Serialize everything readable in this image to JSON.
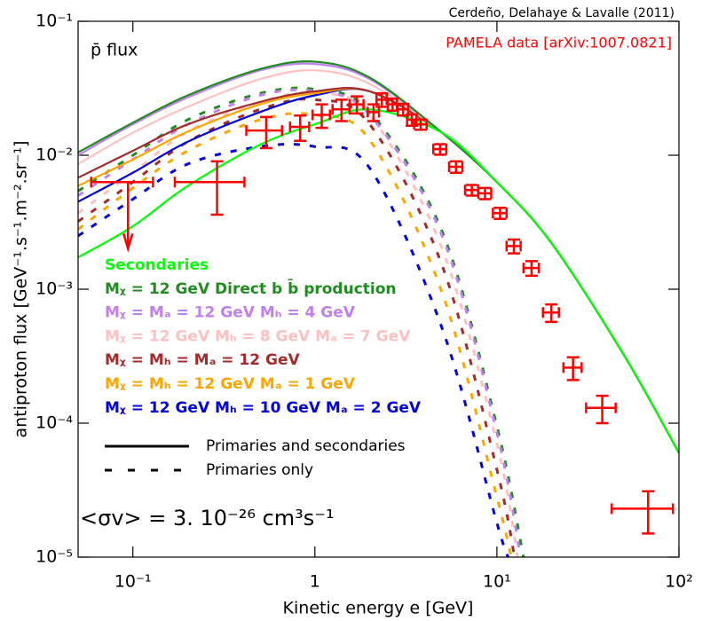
{
  "chart_data": {
    "type": "line",
    "credit": "Cerdeño, Delahaye & Lavalle (2011)",
    "inset_title": "p̄ flux",
    "data_label": "PAMELA data [arXiv:1007.0821]",
    "annotation": "<σv> = 3. 10⁻²⁶ cm³s⁻¹",
    "x_label": "Kinetic energy e [GeV]",
    "y_label": "antiproton flux [GeV⁻¹.s⁻¹.m⁻².sr⁻¹]",
    "xscale": "log",
    "yscale": "log",
    "xlim": [
      0.05,
      100
    ],
    "ylim": [
      1e-05,
      0.1
    ],
    "xticks": [
      {
        "value": 0.1,
        "label": "10⁻¹"
      },
      1,
      {
        "value": 10,
        "label": "10¹"
      },
      {
        "value": 100,
        "label": "10²"
      }
    ],
    "yticks": [
      {
        "value": 1e-05,
        "label": "10⁻⁵"
      },
      {
        "value": 0.0001,
        "label": "10⁻⁴"
      },
      {
        "value": 0.001,
        "label": "10⁻³"
      },
      {
        "value": 0.01,
        "label": "10⁻²"
      },
      {
        "value": 0.1,
        "label": "10⁻¹"
      }
    ],
    "series": [
      {
        "name": "Secondaries",
        "color": "#00ff00",
        "x": [
          0.05,
          0.1,
          0.2,
          0.5,
          1,
          2,
          5,
          10,
          20,
          50,
          100
        ],
        "values": [
          0.00173,
          0.00295,
          0.0059,
          0.012,
          0.017,
          0.022,
          0.0147,
          0.0063,
          0.0022,
          0.00032,
          6e-05
        ]
      },
      {
        "name": "Mᵪ = 12 GeV Direct b b̄ production",
        "color": "#228b22",
        "x": [
          0.05,
          0.1,
          0.2,
          0.5,
          1,
          2,
          5,
          10,
          20,
          50,
          100
        ],
        "values": [
          0.0105,
          0.0175,
          0.028,
          0.044,
          0.05,
          0.038,
          0.0147,
          0.0063,
          0.0022,
          0.00032,
          6e-05
        ],
        "dashed_x": [
          0.05,
          0.1,
          0.2,
          0.5,
          1,
          2,
          5,
          10,
          14
        ],
        "dashed_values": [
          0.0054,
          0.01,
          0.0184,
          0.029,
          0.031,
          0.021,
          0.0027,
          9.5e-05,
          1e-05
        ]
      },
      {
        "name": "Mᵪ = Mₐ = 12 GeV  Mₕ = 4 GeV",
        "color": "#c080f0",
        "x": [
          0.05,
          0.1,
          0.2,
          0.5,
          1,
          2,
          5,
          10,
          20,
          50,
          100
        ],
        "values": [
          0.01,
          0.017,
          0.027,
          0.043,
          0.048,
          0.037,
          0.0147,
          0.0063,
          0.0022,
          0.00032,
          6e-05
        ],
        "dashed_x": [
          0.05,
          0.1,
          0.2,
          0.5,
          1,
          2,
          5,
          10,
          13.5
        ],
        "dashed_values": [
          0.005,
          0.0093,
          0.017,
          0.028,
          0.03,
          0.02,
          0.0025,
          8.5e-05,
          1e-05
        ]
      },
      {
        "name": "Mᵪ = 12 GeV Mₕ = 8 GeV  Mₐ = 7 GeV",
        "color": "#ffc0c0",
        "x": [
          0.05,
          0.1,
          0.2,
          0.5,
          1,
          2,
          5,
          10,
          20,
          50,
          100
        ],
        "values": [
          0.0086,
          0.0147,
          0.023,
          0.037,
          0.043,
          0.034,
          0.0147,
          0.0063,
          0.0022,
          0.00032,
          6e-05
        ],
        "dashed_x": [
          0.05,
          0.1,
          0.2,
          0.5,
          1,
          2,
          5,
          10,
          13
        ],
        "dashed_values": [
          0.0037,
          0.0074,
          0.015,
          0.025,
          0.029,
          0.02,
          0.002,
          7e-05,
          1e-05
        ]
      },
      {
        "name": "Mᵪ = Mₕ = Mₐ = 12 GeV",
        "color": "#a52a2a",
        "x": [
          0.05,
          0.1,
          0.2,
          0.5,
          1,
          2,
          5,
          10,
          20,
          50,
          100
        ],
        "values": [
          0.0068,
          0.0108,
          0.017,
          0.025,
          0.03,
          0.03,
          0.0147,
          0.0063,
          0.0022,
          0.00032,
          6e-05
        ],
        "dashed_x": [
          0.05,
          0.1,
          0.2,
          0.5,
          1,
          2,
          5,
          10,
          12.5
        ],
        "dashed_values": [
          0.0032,
          0.0063,
          0.0126,
          0.022,
          0.026,
          0.017,
          0.0015,
          4.5e-05,
          1e-05
        ]
      },
      {
        "name": "Mᵪ = Mₕ = 12 GeV  Mₐ = 1 GeV",
        "color": "#ffa500",
        "x": [
          0.05,
          0.1,
          0.2,
          0.5,
          1,
          2,
          5,
          10,
          20,
          50,
          100
        ],
        "values": [
          0.0059,
          0.0093,
          0.015,
          0.024,
          0.029,
          0.03,
          0.0147,
          0.0063,
          0.0022,
          0.00032,
          6e-05
        ],
        "dashed_x": [
          0.05,
          0.1,
          0.2,
          0.5,
          1,
          2,
          5,
          10,
          12
        ],
        "dashed_values": [
          0.0028,
          0.0057,
          0.0108,
          0.0184,
          0.02,
          0.013,
          0.00094,
          2.8e-05,
          1e-05
        ]
      },
      {
        "name": "Mᵪ = 12 GeV Mₕ = 10 GeV  Mₐ = 2 GeV",
        "color": "#0000e0",
        "x": [
          0.05,
          0.1,
          0.2,
          0.5,
          1,
          2,
          5,
          10,
          20,
          50,
          100
        ],
        "values": [
          0.0045,
          0.0074,
          0.0126,
          0.021,
          0.028,
          0.03,
          0.0147,
          0.0063,
          0.0022,
          0.00032,
          6e-05
        ],
        "dashed_x": [
          0.05,
          0.1,
          0.2,
          0.5,
          1,
          2,
          5,
          10,
          11.5
        ],
        "dashed_values": [
          0.0025,
          0.0047,
          0.0086,
          0.0116,
          0.0116,
          0.008,
          0.00051,
          1.8e-05,
          1e-05
        ]
      }
    ],
    "line_styles": [
      {
        "label": "Primaries and secondaries",
        "dashed": false
      },
      {
        "label": "Primaries only",
        "dashed": true
      }
    ],
    "points": {
      "color": "#ff0000",
      "x": [
        0.29,
        0.54,
        0.83,
        1.09,
        1.4,
        1.7,
        2.1,
        2.33,
        2.67,
        3.05,
        3.41,
        3.81,
        4.87,
        5.96,
        7.28,
        8.6,
        10.4,
        12.4,
        15.5,
        19.9,
        26.2,
        37.9,
        67.7
      ],
      "xerr": [
        0.12,
        0.12,
        0.1,
        0.12,
        0.15,
        0.15,
        0.15,
        0.15,
        0.15,
        0.2,
        0.2,
        0.3,
        0.4,
        0.5,
        0.6,
        0.7,
        0.9,
        1.1,
        1.5,
        2,
        3,
        7,
        25
      ],
      "values": [
        0.0063,
        0.0153,
        0.0163,
        0.02,
        0.022,
        0.024,
        0.021,
        0.026,
        0.024,
        0.022,
        0.0184,
        0.017,
        0.0111,
        0.0082,
        0.0055,
        0.0052,
        0.0037,
        0.0021,
        0.00144,
        0.00067,
        0.00026,
        0.00013,
        2.3e-05
      ],
      "yerr": [
        0.0027,
        0.004,
        0.0035,
        0.004,
        0.004,
        0.0035,
        0.003,
        0.003,
        0.0025,
        0.0022,
        0.0018,
        0.0015,
        0.001,
        0.0008,
        0.0005,
        0.0005,
        0.00035,
        0.00025,
        0.00018,
        0.0001,
        5e-05,
        3e-05,
        8e-06
      ],
      "upper_limit": {
        "x": 0.094,
        "xerr": 0.035,
        "value": 0.0063
      }
    }
  }
}
